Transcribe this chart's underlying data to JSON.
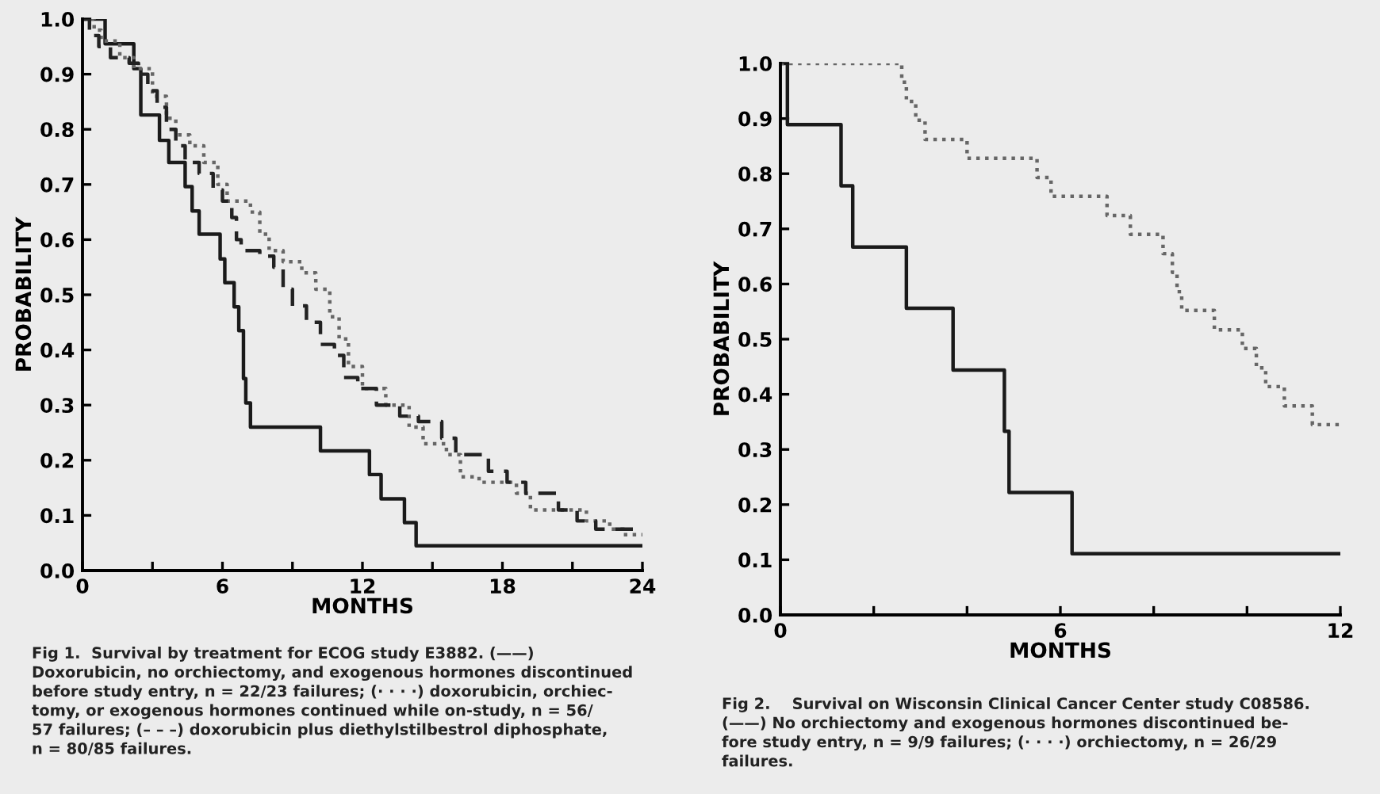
{
  "chart_data": [
    {
      "type": "step",
      "xlabel": "MONTHS",
      "ylabel": "PROBABILITY",
      "xlim": [
        0,
        24
      ],
      "ylim": [
        0,
        1
      ],
      "xticks": [
        0,
        {
          "value": 3,
          "label": null
        },
        6,
        {
          "value": 9,
          "label": null
        },
        12,
        {
          "value": 15,
          "label": null
        },
        18,
        {
          "value": 21,
          "label": null
        },
        24
      ],
      "yticks": [
        {
          "value": 0,
          "label": "0.0"
        },
        {
          "value": 0.1,
          "label": "0.1"
        },
        {
          "value": 0.2,
          "label": "0.2"
        },
        {
          "value": 0.3,
          "label": "0.3"
        },
        {
          "value": 0.4,
          "label": "0.4"
        },
        {
          "value": 0.5,
          "label": "0.5"
        },
        {
          "value": 0.6,
          "label": "0.6"
        },
        {
          "value": 0.7,
          "label": "0.7"
        },
        {
          "value": 0.8,
          "label": "0.8"
        },
        {
          "value": 0.9,
          "label": "0.9"
        },
        {
          "value": 1,
          "label": "1.0"
        }
      ],
      "grid": false,
      "series": [
        {
          "color": "#1a1a1a",
          "line_style": "solid",
          "x": [
            0,
            0.97,
            2.2,
            2.5,
            3.3,
            3.7,
            4.4,
            4.7,
            5.0,
            5.9,
            6.1,
            6.5,
            6.7,
            6.9,
            7.0,
            7.2,
            10.2,
            12.3,
            12.8,
            13.8,
            14.3,
            24
          ],
          "values": [
            1.0,
            0.955,
            0.91,
            0.826,
            0.78,
            0.74,
            0.696,
            0.652,
            0.61,
            0.565,
            0.522,
            0.478,
            0.435,
            0.348,
            0.304,
            0.26,
            0.217,
            0.174,
            0.13,
            0.087,
            0.045,
            0.045
          ]
        },
        {
          "color": "#666666",
          "line_style": "dotted",
          "x": [
            0,
            0.5,
            0.8,
            1.6,
            2.2,
            3.0,
            3.6,
            4.0,
            4.6,
            5.2,
            5.8,
            6.2,
            7.2,
            7.6,
            8.0,
            8.6,
            9.4,
            10.0,
            10.6,
            11.0,
            11.4,
            12.0,
            13.0,
            14.0,
            14.6,
            15.6,
            16.2,
            17.0,
            18.6,
            19.2,
            21.6,
            22.6,
            23.2,
            24
          ],
          "values": [
            1.0,
            0.98,
            0.96,
            0.93,
            0.91,
            0.86,
            0.82,
            0.79,
            0.77,
            0.74,
            0.7,
            0.67,
            0.65,
            0.61,
            0.58,
            0.56,
            0.54,
            0.51,
            0.46,
            0.42,
            0.37,
            0.33,
            0.3,
            0.26,
            0.23,
            0.21,
            0.17,
            0.16,
            0.14,
            0.11,
            0.09,
            0.075,
            0.065,
            0.065
          ]
        },
        {
          "color": "#222222",
          "line_style": "dashed",
          "x": [
            0,
            0.3,
            0.7,
            1.2,
            2.0,
            2.4,
            2.8,
            3.2,
            3.6,
            4.0,
            4.4,
            5.0,
            5.6,
            6.0,
            6.4,
            6.6,
            6.8,
            7.6,
            8.2,
            8.6,
            9.0,
            9.6,
            10.2,
            10.8,
            11.2,
            11.8,
            12.6,
            13.6,
            14.4,
            15.4,
            16.0,
            17.4,
            18.2,
            19.0,
            20.4,
            21.2,
            22.0,
            24
          ],
          "values": [
            1.0,
            0.97,
            0.95,
            0.93,
            0.92,
            0.9,
            0.87,
            0.84,
            0.8,
            0.77,
            0.74,
            0.72,
            0.69,
            0.67,
            0.64,
            0.6,
            0.58,
            0.57,
            0.55,
            0.51,
            0.48,
            0.45,
            0.41,
            0.39,
            0.35,
            0.33,
            0.3,
            0.28,
            0.27,
            0.24,
            0.21,
            0.18,
            0.16,
            0.14,
            0.11,
            0.09,
            0.075,
            0.075
          ]
        }
      ],
      "annotations": [
        "Fig 1.  Survival by treatment for ECOG study E3882. (——)\nDoxorubicin, no orchiectomy, and exogenous hormones discontinued\nbefore study entry, n = 22/23 failures; (· · · ·) doxorubicin, orchiec-\ntomy, or exogenous hormones continued while on-study, n = 56/\n57 failures; (– – –) doxorubicin plus diethylstilbestrol diphosphate,\nn = 80/85 failures."
      ]
    },
    {
      "type": "step",
      "xlabel": "MONTHS",
      "ylabel": "PROBABILITY",
      "xlim": [
        0,
        12
      ],
      "ylim": [
        0,
        1
      ],
      "xticks": [
        0,
        {
          "value": 2,
          "label": null
        },
        {
          "value": 4,
          "label": null
        },
        6,
        {
          "value": 8,
          "label": null
        },
        {
          "value": 10,
          "label": null
        },
        12
      ],
      "yticks": [
        {
          "value": 0,
          "label": "0.0"
        },
        {
          "value": 0.1,
          "label": "0.1"
        },
        {
          "value": 0.2,
          "label": "0.2"
        },
        {
          "value": 0.3,
          "label": "0.3"
        },
        {
          "value": 0.4,
          "label": "0.4"
        },
        {
          "value": 0.5,
          "label": "0.5"
        },
        {
          "value": 0.6,
          "label": "0.6"
        },
        {
          "value": 0.7,
          "label": "0.7"
        },
        {
          "value": 0.8,
          "label": "0.8"
        },
        {
          "value": 0.9,
          "label": "0.9"
        },
        {
          "value": 1,
          "label": "1.0"
        }
      ],
      "grid": false,
      "series": [
        {
          "color": "#1a1a1a",
          "line_style": "solid",
          "x": [
            0,
            0.15,
            1.3,
            1.55,
            2.7,
            3.7,
            4.8,
            4.9,
            6.25,
            12
          ],
          "values": [
            1.0,
            0.889,
            0.778,
            0.667,
            0.556,
            0.444,
            0.333,
            0.222,
            0.111,
            0.111
          ]
        },
        {
          "color": "#666666",
          "line_style": "dotted",
          "x": [
            0,
            2.6,
            2.7,
            2.9,
            3.1,
            4.0,
            5.5,
            5.8,
            7.0,
            7.5,
            8.2,
            8.4,
            8.5,
            8.6,
            9.3,
            9.9,
            10.2,
            10.4,
            10.8,
            11.4,
            12
          ],
          "values": [
            1.0,
            0.966,
            0.931,
            0.897,
            0.862,
            0.828,
            0.793,
            0.759,
            0.724,
            0.69,
            0.655,
            0.621,
            0.586,
            0.552,
            0.517,
            0.483,
            0.448,
            0.414,
            0.379,
            0.345,
            0.345
          ]
        }
      ],
      "annotations": [
        "Fig 2.    Survival on Wisconsin Clinical Cancer Center study C08586.\n(——) No orchiectomy and exogenous hormones discontinued be-\nfore study entry, n = 9/9 failures; (· · · ·) orchiectomy, n = 26/29\nfailures."
      ]
    }
  ]
}
